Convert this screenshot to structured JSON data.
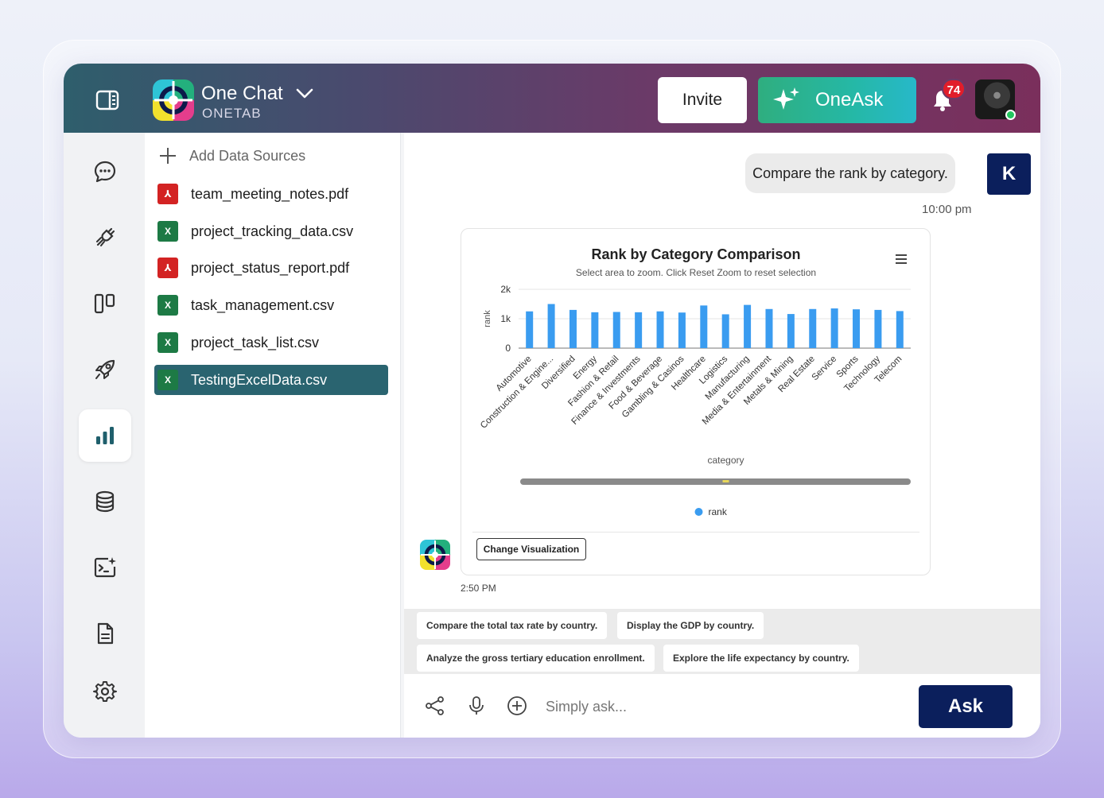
{
  "header": {
    "brand_name": "One Chat",
    "brand_sub": "ONETAB",
    "invite_label": "Invite",
    "oneask_label": "OneAsk",
    "notification_count": "74"
  },
  "sidebar": {
    "items": [
      {
        "name": "chat-icon"
      },
      {
        "name": "plug-icon"
      },
      {
        "name": "columns-icon"
      },
      {
        "name": "rocket-icon"
      },
      {
        "name": "bar-chart-icon",
        "active": true
      },
      {
        "name": "database-icon"
      },
      {
        "name": "terminal-sparkle-icon"
      },
      {
        "name": "document-icon"
      },
      {
        "name": "gear-icon"
      }
    ]
  },
  "files": {
    "add_label": "Add Data Sources",
    "items": [
      {
        "name": "team_meeting_notes.pdf",
        "type": "pdf"
      },
      {
        "name": "project_tracking_data.csv",
        "type": "xls"
      },
      {
        "name": "project_status_report.pdf",
        "type": "pdf"
      },
      {
        "name": "task_management.csv",
        "type": "xls"
      },
      {
        "name": "project_task_list.csv",
        "type": "xls"
      },
      {
        "name": "TestingExcelData.csv",
        "type": "xls",
        "active": true
      }
    ]
  },
  "chat": {
    "user_message": "Compare the rank by category.",
    "user_initial": "K",
    "user_time": "10:00 pm",
    "bot_time": "2:50 PM",
    "change_viz_label": "Change Visualization"
  },
  "chart_data": {
    "type": "bar",
    "title": "Rank by Category Comparison",
    "subtitle": "Select area to zoom. Click Reset Zoom to reset selection",
    "xlabel": "category",
    "ylabel": "rank",
    "ylim": [
      0,
      2000
    ],
    "yticks": [
      "0",
      "1k",
      "2k"
    ],
    "legend_position": "bottom-center",
    "color": "#3a9cf0",
    "categories": [
      "Automotive",
      "Construction & Engine...",
      "Diversified",
      "Energy",
      "Fashion & Retail",
      "Finance & Investments",
      "Food & Beverage",
      "Gambling & Casinos",
      "Healthcare",
      "Logistics",
      "Manufacturing",
      "Media & Entertainment",
      "Metals & Mining",
      "Real Estate",
      "Service",
      "Sports",
      "Technology",
      "Telecom"
    ],
    "series": [
      {
        "name": "rank",
        "values": [
          1250,
          1500,
          1300,
          1220,
          1230,
          1220,
          1250,
          1210,
          1450,
          1150,
          1470,
          1330,
          1160,
          1330,
          1350,
          1320,
          1300,
          1260
        ]
      }
    ]
  },
  "suggestions": [
    "Compare the total tax rate by country.",
    "Display the GDP by country.",
    "Analyze the gross tertiary education enrollment.",
    "Explore the life expectancy by country."
  ],
  "composer": {
    "placeholder": "Simply ask...",
    "ask_label": "Ask"
  }
}
